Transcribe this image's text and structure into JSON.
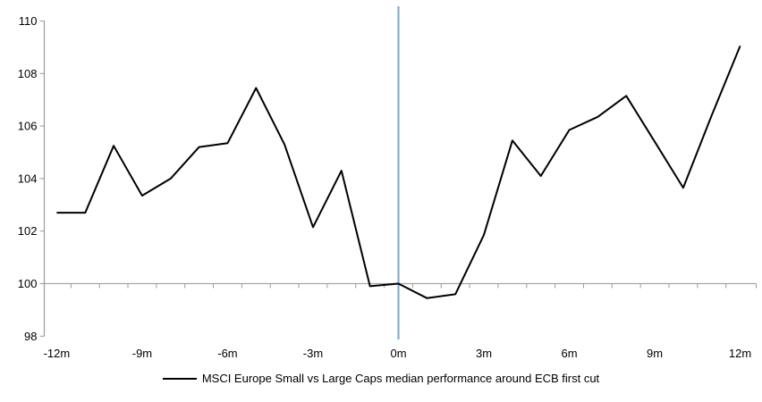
{
  "chart_data": {
    "type": "line",
    "title": "",
    "x_months": [
      -12,
      -11,
      -10,
      -9,
      -8,
      -7,
      -6,
      -5,
      -4,
      -3,
      -2,
      -1,
      0,
      1,
      2,
      3,
      4,
      5,
      6,
      7,
      8,
      9,
      10,
      11,
      12
    ],
    "series": [
      {
        "name": "MSCI Europe Small vs Large Caps median performance around ECB first cut",
        "values": [
          102.7,
          102.7,
          105.25,
          103.35,
          104.0,
          105.2,
          105.35,
          107.45,
          105.3,
          102.15,
          104.3,
          99.9,
          100.0,
          99.45,
          99.6,
          101.85,
          105.45,
          104.1,
          105.85,
          106.35,
          107.15,
          105.4,
          103.65,
          106.4,
          109.05
        ]
      }
    ],
    "ylim": [
      98,
      110
    ],
    "yticks": [
      98,
      100,
      102,
      104,
      106,
      108,
      110
    ],
    "xticks": [
      {
        "value": -12,
        "label": "-12m"
      },
      {
        "value": -9,
        "label": "-9m"
      },
      {
        "value": -6,
        "label": "-6m"
      },
      {
        "value": -3,
        "label": "-3m"
      },
      {
        "value": 0,
        "label": "0m"
      },
      {
        "value": 3,
        "label": "3m"
      },
      {
        "value": 6,
        "label": "6m"
      },
      {
        "value": 9,
        "label": "9m"
      },
      {
        "value": 12,
        "label": "12m"
      }
    ],
    "grid": false,
    "legend_position": "bottom",
    "reference_lines": [
      {
        "orientation": "vertical",
        "at_x": 0
      },
      {
        "orientation": "horizontal",
        "at_y": 100
      }
    ]
  },
  "legend": {
    "label": "MSCI Europe Small vs Large Caps median performance around ECB first cut"
  },
  "colors": {
    "series_line": "#000000",
    "event_vline": "#85ABD2",
    "baseline_hline": "#A6A6A6",
    "axis": "#9B9B9B",
    "text": "#000000",
    "background": "#FFFFFF"
  }
}
